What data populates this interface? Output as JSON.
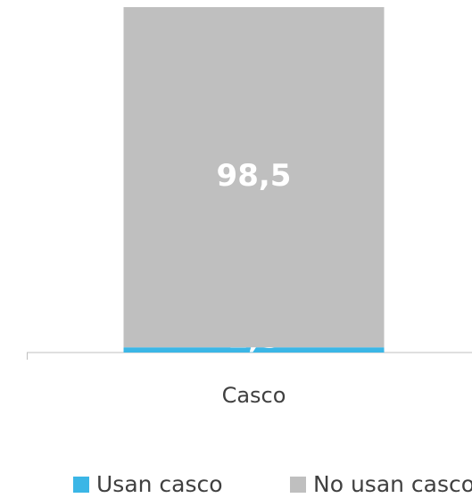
{
  "chart_data": {
    "type": "stacked_bar",
    "categories": [
      "Casco"
    ],
    "series": [
      {
        "name": "Usan casco",
        "color": "#3bb6e6",
        "values": [
          1.5
        ],
        "value_labels": [
          "1,5"
        ]
      },
      {
        "name": "No usan casco",
        "color": "#bfbfbf",
        "values": [
          98.5
        ],
        "value_labels": [
          "98,5"
        ]
      }
    ],
    "ylim": [
      0,
      100
    ]
  }
}
